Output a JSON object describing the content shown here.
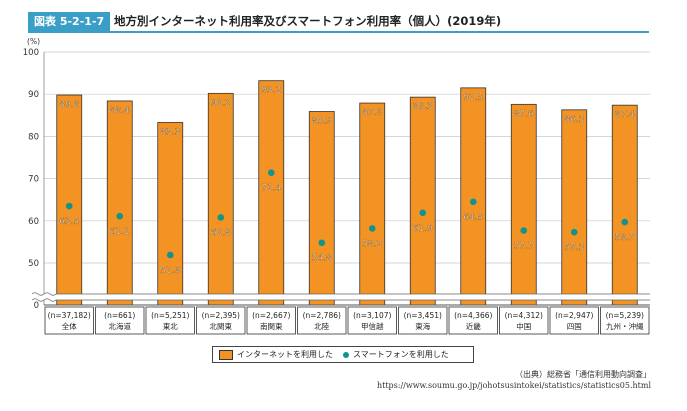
{
  "figure": {
    "label": "図表 5-2-1-7",
    "title": "地方別インターネット利用率及びスマートフォン利用率（個人）(2019年)"
  },
  "chart_data": {
    "type": "bar",
    "y_unit": "(%)",
    "ylim": [
      0,
      100
    ],
    "yticks": [
      0,
      50,
      60,
      70,
      80,
      90,
      100
    ],
    "axis_break": true,
    "categories": [
      "全体",
      "北海道",
      "東北",
      "北関東",
      "南関東",
      "北陸",
      "甲信越",
      "東海",
      "近畿",
      "中国",
      "四国",
      "九州・沖縄"
    ],
    "sample_sizes": [
      "(n=37,182)",
      "(n=661)",
      "(n=5,251)",
      "(n=2,395)",
      "(n=2,667)",
      "(n=2,786)",
      "(n=3,107)",
      "(n=3,451)",
      "(n=4,366)",
      "(n=4,312)",
      "(n=2,947)",
      "(n=5,239)"
    ],
    "series": [
      {
        "name": "インターネットを利用した",
        "type": "bar",
        "color": "#f39323",
        "values": [
          89.8,
          88.4,
          83.3,
          90.2,
          93.2,
          85.9,
          87.9,
          89.3,
          91.5,
          87.6,
          86.3,
          87.4
        ]
      },
      {
        "name": "スマートフォンを利用した",
        "type": "point",
        "color": "#12938c",
        "values": [
          63.5,
          61.1,
          51.9,
          60.8,
          71.4,
          54.8,
          58.2,
          61.9,
          64.5,
          57.7,
          57.3,
          59.7
        ]
      }
    ]
  },
  "legend": {
    "internet": "インターネットを利用した",
    "smartphone": "スマートフォンを利用した"
  },
  "source": {
    "text": "（出典）総務省「通信利用動向調査」",
    "url": "https://www.soumu.go.jp/johotsusintokei/statistics/statistics05.html"
  }
}
